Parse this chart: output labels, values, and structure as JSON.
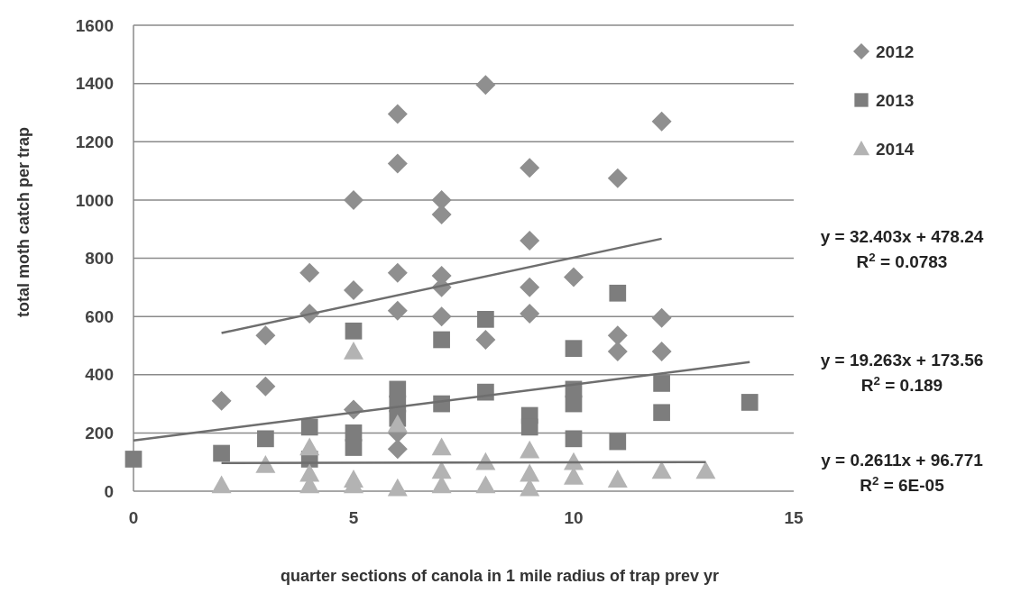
{
  "chart_data": {
    "type": "scatter",
    "xlabel": "quarter sections of canola  in 1 mile radius of trap prev yr",
    "ylabel": "total moth catch  per trap",
    "xlim": [
      0,
      15
    ],
    "xticks": [
      0,
      5,
      10,
      15
    ],
    "ylim": [
      0,
      1600
    ],
    "yticks": [
      0,
      200,
      400,
      600,
      800,
      1000,
      1200,
      1400,
      1600
    ],
    "grid": "y",
    "legend": "top right",
    "series": [
      {
        "name": "2012",
        "color": "#8f8f8f",
        "marker": "diamond",
        "x": [
          2,
          3,
          3,
          4,
          4,
          5,
          5,
          5,
          6,
          6,
          6,
          6,
          6,
          6,
          7,
          7,
          7,
          7,
          7,
          8,
          8,
          9,
          9,
          9,
          9,
          10,
          11,
          11,
          11,
          12,
          12,
          12
        ],
        "values": [
          310,
          535,
          360,
          750,
          610,
          1000,
          690,
          280,
          1295,
          1125,
          750,
          620,
          200,
          145,
          1000,
          950,
          740,
          700,
          600,
          1395,
          520,
          1110,
          860,
          700,
          610,
          735,
          1075,
          535,
          480,
          1270,
          595,
          480
        ]
      },
      {
        "name": "2013",
        "color": "#7d7d7d",
        "marker": "square",
        "x": [
          0,
          2,
          3,
          4,
          4,
          5,
          5,
          5,
          6,
          6,
          6,
          7,
          7,
          8,
          8,
          9,
          9,
          10,
          10,
          10,
          10,
          11,
          11,
          12,
          12,
          14
        ],
        "values": [
          110,
          130,
          180,
          220,
          110,
          550,
          200,
          150,
          350,
          300,
          250,
          520,
          300,
          590,
          340,
          260,
          220,
          490,
          350,
          300,
          180,
          680,
          170,
          370,
          270,
          305
        ]
      },
      {
        "name": "2014",
        "color": "#b3b3b3",
        "marker": "triangle",
        "x": [
          2,
          3,
          4,
          4,
          4,
          5,
          5,
          5,
          6,
          6,
          7,
          7,
          7,
          8,
          8,
          9,
          9,
          9,
          10,
          10,
          11,
          12,
          13
        ],
        "values": [
          20,
          90,
          150,
          60,
          20,
          480,
          40,
          20,
          230,
          10,
          150,
          70,
          20,
          100,
          20,
          140,
          60,
          10,
          100,
          50,
          40,
          70,
          70
        ]
      },
      {
        "type": "line",
        "color": "#6e6e6e",
        "marker": "none",
        "x": [
          2,
          12
        ],
        "values": [
          543,
          867
        ]
      },
      {
        "type": "line",
        "color": "#6e6e6e",
        "marker": "none",
        "x": [
          0,
          14
        ],
        "values": [
          174,
          443
        ]
      },
      {
        "type": "line",
        "color": "#6e6e6e",
        "marker": "none",
        "x": [
          2,
          13
        ],
        "values": [
          97,
          100
        ]
      }
    ],
    "annotations": [
      "y = 32.403x + 478.24\nR$^{2}$ = 0.0783",
      "y = 19.263x + 173.56\nR$^{2}$ = 0.189",
      "y = 0.2611x + 96.771\nR$^{2}$ = 6E-05"
    ]
  }
}
